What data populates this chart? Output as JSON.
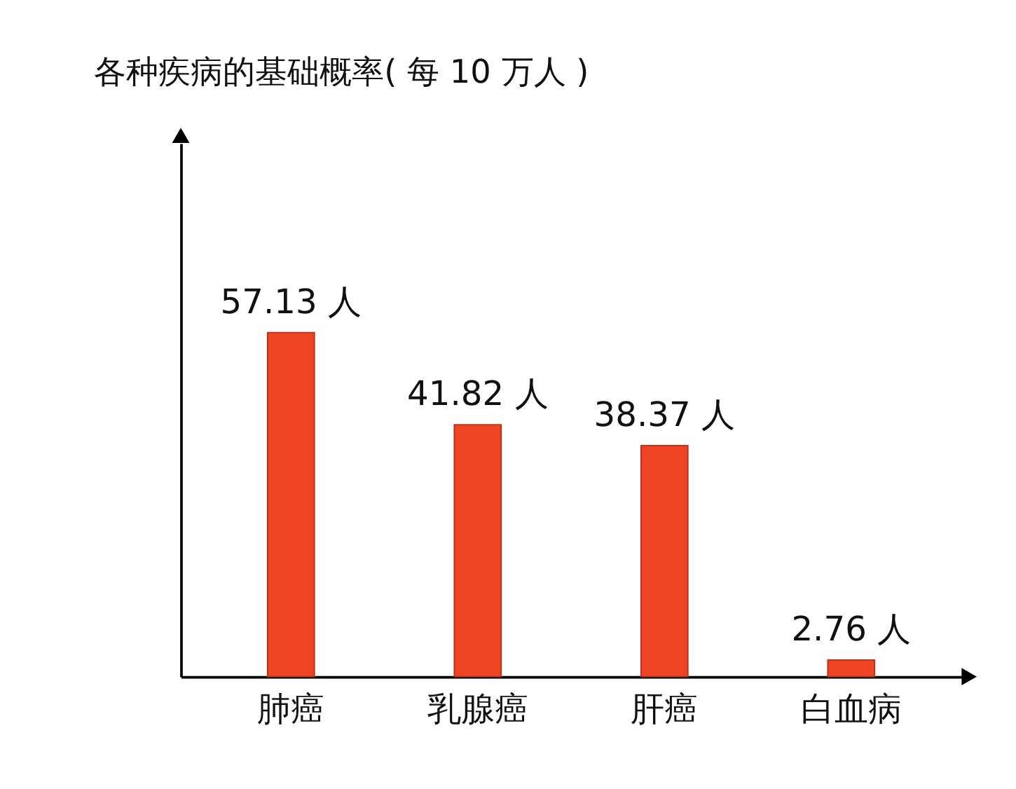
{
  "chart_data": {
    "type": "bar",
    "title": "各种疾病的基础概率( 每 10 万人 )",
    "categories": [
      "肺癌",
      "乳腺癌",
      "肝癌",
      "白血病"
    ],
    "values": [
      57.13,
      41.82,
      38.37,
      2.76
    ],
    "value_labels": [
      "57.13 人",
      "41.82 人",
      "38.37 人",
      "2.76 人"
    ],
    "color": "#ee4423",
    "grid": false
  }
}
